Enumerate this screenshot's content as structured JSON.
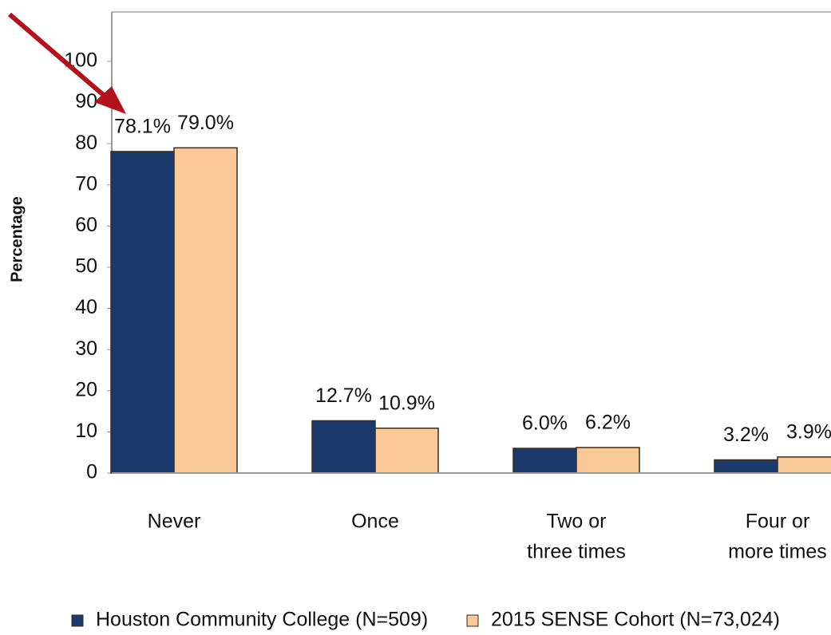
{
  "chart_data": {
    "type": "bar",
    "y_label": "Percentage",
    "categories": [
      [
        "Never"
      ],
      [
        "Once"
      ],
      [
        "Two or",
        "three times"
      ],
      [
        "Four or",
        "more times"
      ]
    ],
    "series": [
      {
        "name": "Houston Community College (N=509)",
        "color": "#1b3a6b",
        "values": [
          78.1,
          12.7,
          6.0,
          3.2
        ],
        "value_labels": [
          "78.1%",
          "12.7%",
          "6.0%",
          "3.2%"
        ]
      },
      {
        "name": "2015 SENSE Cohort (N=73,024)",
        "color": "#fbc898",
        "values": [
          79.0,
          10.9,
          6.2,
          3.9
        ],
        "value_labels": [
          "79.0%",
          "10.9%",
          "6.2%",
          "3.9%"
        ]
      }
    ],
    "ylim": [
      0,
      112
    ],
    "yticks": [
      0,
      10,
      20,
      30,
      40,
      50,
      60,
      70,
      80,
      90,
      100
    ],
    "grid": false
  }
}
